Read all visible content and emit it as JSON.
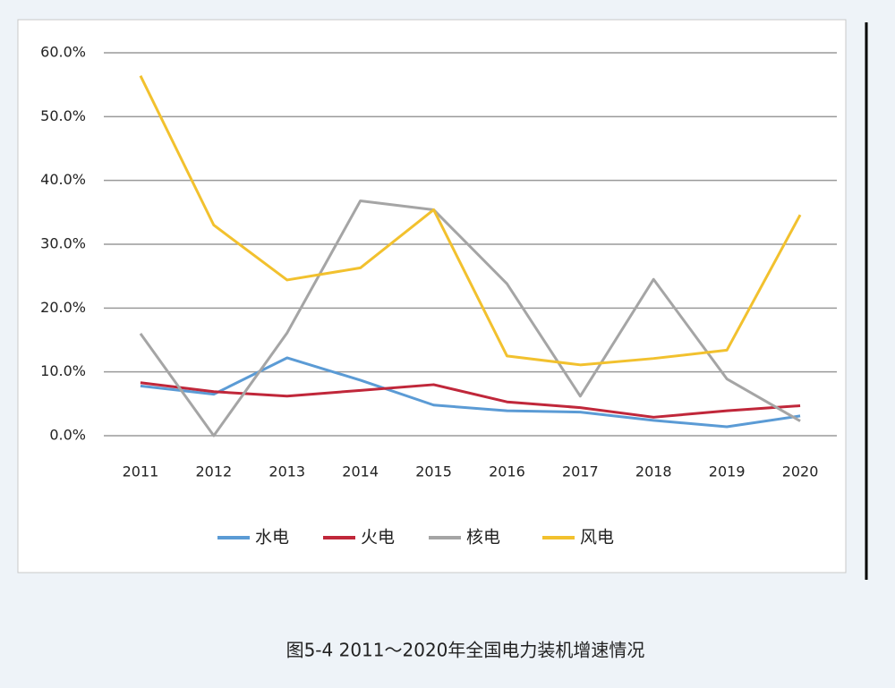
{
  "chart_data": {
    "type": "line",
    "caption": "图5-4 2011～2020年全国电力装机增速情况",
    "categories": [
      "2011",
      "2012",
      "2013",
      "2014",
      "2015",
      "2016",
      "2017",
      "2018",
      "2019",
      "2020"
    ],
    "series": [
      {
        "name": "水电",
        "color": "#5b9bd5",
        "values": [
          7.8,
          6.5,
          12.2,
          8.7,
          4.8,
          3.9,
          3.7,
          2.4,
          1.4,
          3.1
        ]
      },
      {
        "name": "火电",
        "color": "#c0273a",
        "values": [
          8.3,
          6.9,
          6.2,
          7.1,
          8.0,
          5.3,
          4.4,
          2.9,
          3.9,
          4.7
        ]
      },
      {
        "name": "核电",
        "color": "#a5a5a5",
        "values": [
          16.0,
          0.0,
          16.1,
          36.8,
          35.4,
          23.8,
          6.2,
          24.5,
          8.9,
          2.3
        ]
      },
      {
        "name": "风电",
        "color": "#f2c12e",
        "values": [
          56.4,
          33.0,
          24.4,
          26.3,
          35.4,
          12.5,
          11.1,
          12.1,
          13.4,
          34.6
        ]
      }
    ],
    "ylim": [
      0,
      60
    ],
    "yticks": [
      {
        "value": 0,
        "label": "0.0%"
      },
      {
        "value": 10,
        "label": "10.0%"
      },
      {
        "value": 20,
        "label": "20.0%"
      },
      {
        "value": 30,
        "label": "30.0%"
      },
      {
        "value": 40,
        "label": "40.0%"
      },
      {
        "value": 50,
        "label": "50.0%"
      },
      {
        "value": 60,
        "label": "60.0%"
      }
    ],
    "grid": true
  }
}
